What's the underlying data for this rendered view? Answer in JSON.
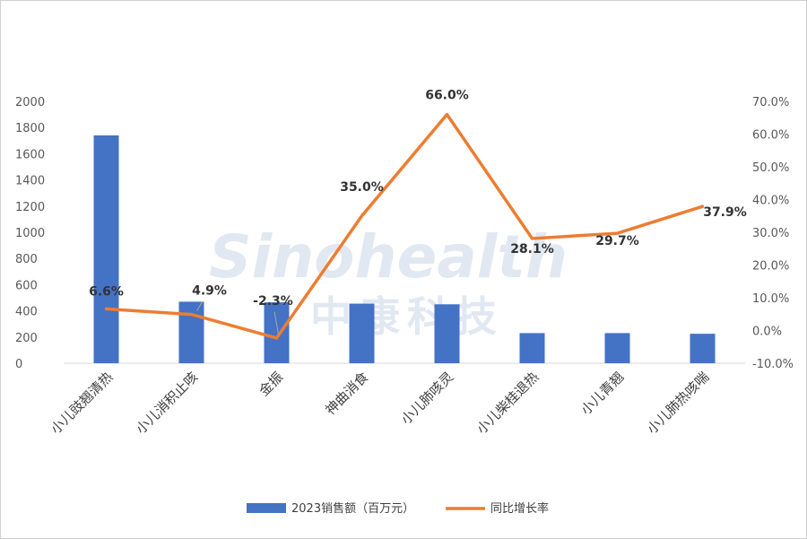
{
  "watermark": {
    "latin": "Sinohealth",
    "cjk": "中康科技"
  },
  "legend": {
    "bar": "2023销售额（百万元）",
    "line": "同比增长率"
  },
  "colors": {
    "bar": "#4472c4",
    "line": "#ed7d31",
    "axis": "#d9d9d9"
  },
  "chart_data": {
    "type": "bar",
    "categories": [
      "小儿豉翘清热",
      "小儿消积止咳",
      "金振",
      "神曲消食",
      "小儿肺咳灵",
      "小儿柴桂退热",
      "小儿青翘",
      "小儿肺热咳喘"
    ],
    "series": [
      {
        "name": "2023销售额（百万元）",
        "type": "bar",
        "axis": "left",
        "values": [
          1740,
          470,
          465,
          455,
          450,
          230,
          230,
          225
        ]
      },
      {
        "name": "同比增长率",
        "type": "line",
        "axis": "right",
        "values": [
          6.6,
          4.9,
          -2.3,
          35.0,
          66.0,
          28.1,
          29.7,
          37.9
        ],
        "labels": [
          "6.6%",
          "4.9%",
          "-2.3%",
          "35.0%",
          "66.0%",
          "28.1%",
          "29.7%",
          "37.9%"
        ]
      }
    ],
    "y_left": {
      "ylim": [
        0,
        2000
      ],
      "ticks": [
        "0",
        "200",
        "400",
        "600",
        "800",
        "1000",
        "1200",
        "1400",
        "1600",
        "1800",
        "2000"
      ]
    },
    "y_right": {
      "ylim": [
        -10,
        70
      ],
      "ticks": [
        "-10.0%",
        "0.0%",
        "10.0%",
        "20.0%",
        "30.0%",
        "40.0%",
        "50.0%",
        "60.0%",
        "70.0%"
      ]
    },
    "grid": false,
    "legend_position": "bottom"
  }
}
